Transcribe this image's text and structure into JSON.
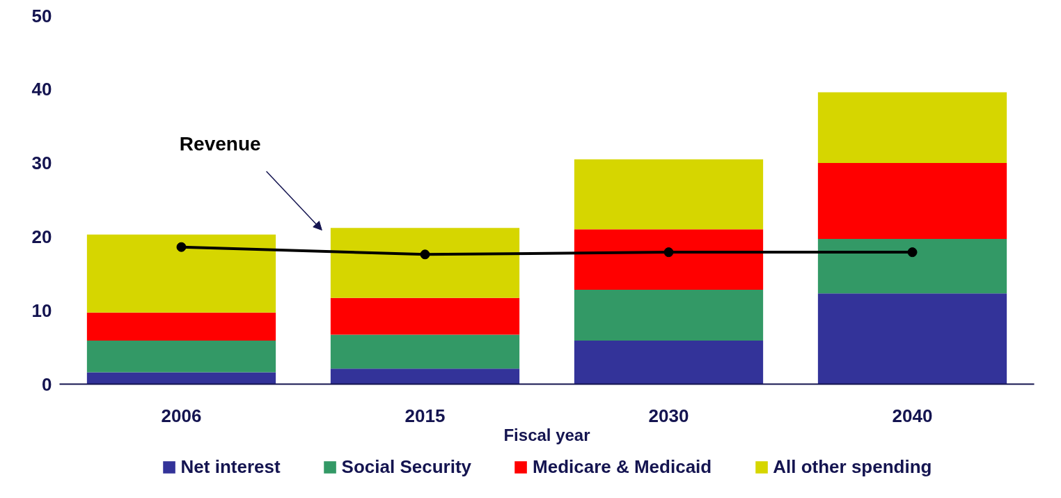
{
  "chart_data": {
    "type": "bar",
    "stacked": true,
    "xlabel": "Fiscal year",
    "categories": [
      "2006",
      "2015",
      "2030",
      "2040"
    ],
    "series": [
      {
        "name": "Net interest",
        "color": "#333399",
        "values": [
          1.6,
          2.1,
          5.9,
          12.3
        ]
      },
      {
        "name": "Social Security",
        "color": "#339966",
        "values": [
          4.3,
          4.6,
          6.9,
          7.4
        ]
      },
      {
        "name": "Medicare & Medicaid",
        "color": "#ff0000",
        "values": [
          3.8,
          5.0,
          8.2,
          10.3
        ]
      },
      {
        "name": "All other spending",
        "color": "#d6d600",
        "values": [
          10.6,
          9.5,
          9.5,
          9.6
        ]
      },
      {
        "name": "Revenue",
        "type": "line",
        "color": "#000000",
        "marker": "circle",
        "values": [
          18.6,
          17.6,
          17.9,
          17.9
        ]
      }
    ],
    "ylim": [
      0,
      50
    ],
    "yticks": [
      0,
      10,
      20,
      30,
      40,
      50
    ],
    "grid": false,
    "legend": "bottom"
  }
}
